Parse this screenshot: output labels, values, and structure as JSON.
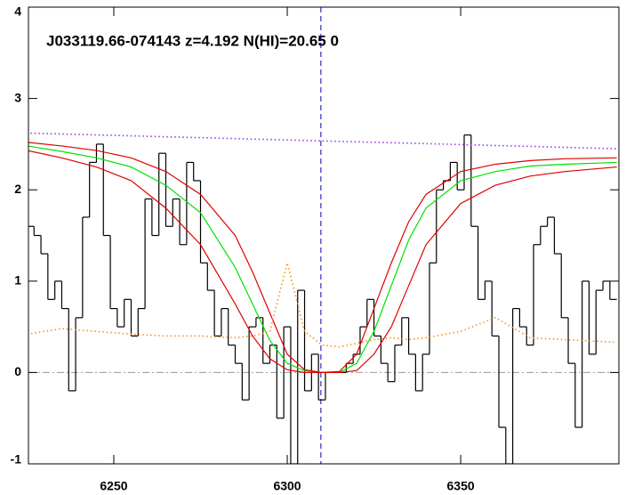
{
  "chart_data": {
    "type": "line",
    "title": "J033119.66-074143 z=4.192 N(HI)=20.65 0",
    "xlim": [
      6225.4,
      6395.6
    ],
    "ylim": [
      -1,
      4
    ],
    "xticks": [
      6250,
      6300,
      6350
    ],
    "yticks": [
      -1,
      0,
      1,
      2,
      3,
      4
    ],
    "series": [
      {
        "color": "#000000",
        "drawstyle": "steps",
        "linestyle": "solid",
        "x": [
          6226,
          6228,
          6230,
          6232,
          6234,
          6236,
          6238,
          6240,
          6242,
          6244,
          6246,
          6248,
          6250,
          6252,
          6254,
          6256,
          6258,
          6260,
          6262,
          6264,
          6266,
          6268,
          6270,
          6272,
          6274,
          6276,
          6278,
          6280,
          6282,
          6284,
          6286,
          6288,
          6290,
          6292,
          6294,
          6296,
          6298,
          6300,
          6302,
          6304,
          6306,
          6308,
          6310,
          6312,
          6314,
          6316,
          6318,
          6320,
          6322,
          6324,
          6326,
          6328,
          6330,
          6332,
          6334,
          6336,
          6338,
          6340,
          6342,
          6344,
          6346,
          6348,
          6350,
          6352,
          6354,
          6356,
          6358,
          6360,
          6362,
          6364,
          6366,
          6368,
          6370,
          6372,
          6374,
          6376,
          6378,
          6380,
          6382,
          6384,
          6386,
          6388,
          6390,
          6392,
          6394
        ],
        "values": [
          1.6,
          1.5,
          1.3,
          0.8,
          1.0,
          0.7,
          -0.2,
          0.6,
          1.7,
          2.3,
          2.5,
          1.5,
          0.7,
          0.5,
          0.8,
          0.4,
          0.7,
          1.9,
          1.5,
          2.4,
          1.6,
          1.9,
          1.4,
          2.3,
          2.1,
          1.2,
          0.9,
          0.4,
          0.7,
          0.3,
          0.1,
          -0.3,
          0.5,
          0.6,
          0.1,
          0.3,
          -0.5,
          0.5,
          -1.0,
          0.9,
          -0.2,
          0.2,
          -0.3,
          0.0,
          0.0,
          0.0,
          0.1,
          0.2,
          0.5,
          0.8,
          0.4,
          0.1,
          -0.1,
          0.3,
          0.6,
          0.2,
          -0.2,
          0.2,
          1.2,
          2.0,
          2.1,
          2.3,
          2.0,
          2.6,
          1.6,
          0.8,
          1.0,
          0.4,
          -0.6,
          -1.0,
          0.7,
          0.5,
          0.3,
          1.4,
          1.6,
          1.7,
          1.3,
          0.6,
          0.1,
          -0.6,
          1.0,
          0.2,
          0.9,
          1.0,
          0.8
        ]
      },
      {
        "color": "#00e000",
        "drawstyle": "line",
        "linestyle": "solid",
        "x": [
          6225,
          6235,
          6245,
          6255,
          6265,
          6275,
          6285,
          6290,
          6295,
          6300,
          6305,
          6310,
          6315,
          6320,
          6325,
          6330,
          6335,
          6340,
          6350,
          6360,
          6370,
          6380,
          6395
        ],
        "values": [
          2.48,
          2.42,
          2.35,
          2.25,
          2.05,
          1.75,
          1.15,
          0.75,
          0.35,
          0.1,
          0.02,
          0,
          0,
          0.1,
          0.45,
          0.95,
          1.45,
          1.8,
          2.1,
          2.2,
          2.26,
          2.28,
          2.3
        ]
      },
      {
        "color": "#e00000",
        "drawstyle": "line",
        "linestyle": "solid",
        "x": [
          6225,
          6235,
          6245,
          6255,
          6265,
          6275,
          6285,
          6290,
          6295,
          6300,
          6305,
          6310,
          6315,
          6320,
          6325,
          6330,
          6335,
          6340,
          6350,
          6360,
          6370,
          6380,
          6395
        ],
        "values": [
          2.52,
          2.48,
          2.43,
          2.35,
          2.2,
          1.95,
          1.5,
          1.1,
          0.65,
          0.2,
          0.03,
          0,
          0.01,
          0.2,
          0.7,
          1.2,
          1.65,
          1.95,
          2.2,
          2.28,
          2.32,
          2.34,
          2.35
        ]
      },
      {
        "color": "#e00000",
        "drawstyle": "line",
        "linestyle": "solid",
        "x": [
          6225,
          6235,
          6245,
          6255,
          6265,
          6275,
          6285,
          6290,
          6295,
          6300,
          6305,
          6310,
          6315,
          6320,
          6325,
          6330,
          6335,
          6340,
          6350,
          6360,
          6370,
          6380,
          6395
        ],
        "values": [
          2.43,
          2.35,
          2.25,
          2.1,
          1.8,
          1.4,
          0.75,
          0.4,
          0.15,
          0.03,
          0,
          0,
          0,
          0.02,
          0.2,
          0.5,
          0.95,
          1.4,
          1.85,
          2.05,
          2.15,
          2.2,
          2.25
        ]
      },
      {
        "color": "#9933ff",
        "drawstyle": "line",
        "linestyle": "dotted",
        "x": [
          6226,
          6395
        ],
        "values": [
          2.62,
          2.45
        ]
      },
      {
        "color": "#ff8c1a",
        "drawstyle": "line",
        "linestyle": "dotted",
        "x": [
          6225,
          6235,
          6245,
          6255,
          6265,
          6275,
          6285,
          6290,
          6295,
          6300,
          6305,
          6310,
          6315,
          6320,
          6325,
          6330,
          6335,
          6340,
          6350,
          6360,
          6370,
          6380,
          6395
        ],
        "values": [
          0.42,
          0.48,
          0.45,
          0.42,
          0.4,
          0.4,
          0.38,
          0.4,
          0.45,
          1.2,
          0.45,
          0.3,
          0.28,
          0.32,
          0.36,
          0.38,
          0.36,
          0.38,
          0.45,
          0.6,
          0.38,
          0.36,
          0.33
        ]
      }
    ],
    "vline": {
      "x": 6309.7,
      "color": "#0000c0"
    },
    "hline": {
      "y": 0,
      "color": "#999999"
    }
  }
}
